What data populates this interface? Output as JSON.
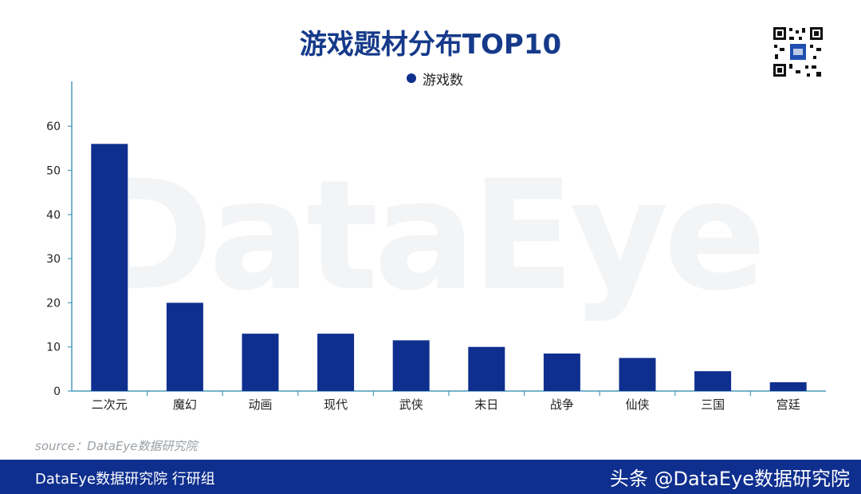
{
  "header": {
    "title": "游戏题材分布TOP10"
  },
  "legend": {
    "label": "游戏数"
  },
  "source": "source：DataEye数据研究院",
  "watermark": "DataEye",
  "footer": {
    "left": "DataEye数据研究院 行研组",
    "right": "头条 @DataEye数据研究院"
  },
  "colors": {
    "bar": "#0f2f8f",
    "axis": "#4a9ab8",
    "footer": "#0f2f8f"
  },
  "chart_data": {
    "type": "bar",
    "categories": [
      "二次元",
      "魔幻",
      "动画",
      "现代",
      "武侠",
      "末日",
      "战争",
      "仙侠",
      "三国",
      "宫廷"
    ],
    "series": [
      {
        "name": "游戏数",
        "values": [
          56,
          20,
          13,
          13,
          11.5,
          10,
          8.5,
          7.5,
          4.5,
          2
        ]
      }
    ],
    "yticks": [
      0,
      10,
      20,
      30,
      40,
      50,
      60
    ],
    "ylim": [
      0,
      70
    ],
    "grid": false,
    "legend_position": "top-center"
  }
}
